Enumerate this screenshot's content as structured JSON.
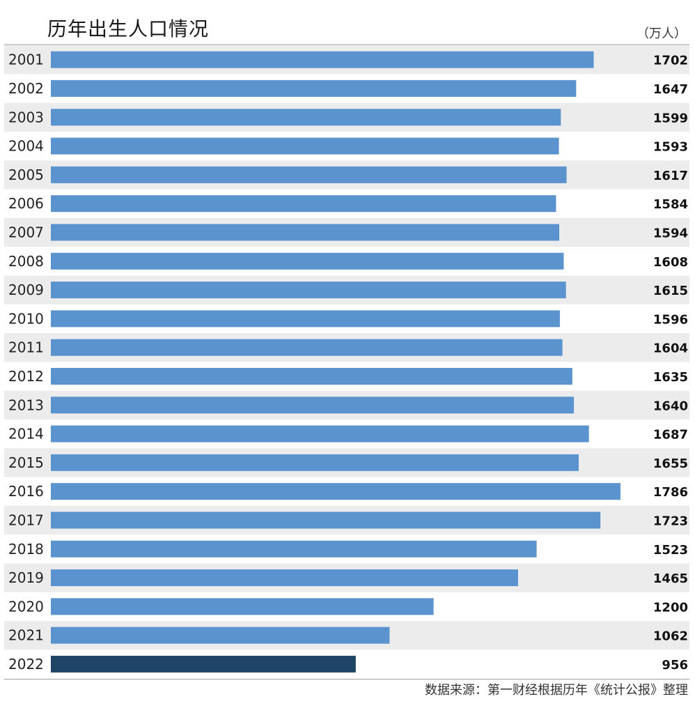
{
  "chart_data": {
    "type": "bar",
    "orientation": "horizontal",
    "title": "历年出生人口情况",
    "unit": "（万人）",
    "source": "数据来源：第一财经根据历年《统计公报》整理",
    "categories": [
      "2001",
      "2002",
      "2003",
      "2004",
      "2005",
      "2006",
      "2007",
      "2008",
      "2009",
      "2010",
      "2011",
      "2012",
      "2013",
      "2014",
      "2015",
      "2016",
      "2017",
      "2018",
      "2019",
      "2020",
      "2021",
      "2022"
    ],
    "values": [
      1702,
      1647,
      1599,
      1593,
      1617,
      1584,
      1594,
      1608,
      1615,
      1596,
      1604,
      1635,
      1640,
      1687,
      1655,
      1786,
      1723,
      1523,
      1465,
      1200,
      1062,
      956
    ],
    "xlim": [
      0,
      1786
    ],
    "grid": false,
    "colors": {
      "bar": "#5b93cf",
      "highlight": "#1f4566",
      "stripe": "#ececec",
      "rule": "#999999"
    },
    "highlight_category": "2022"
  }
}
